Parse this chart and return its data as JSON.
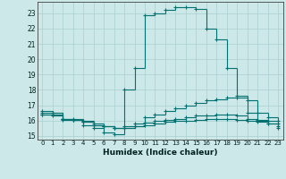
{
  "xlabel": "Humidex (Indice chaleur)",
  "bg_color": "#cce8e8",
  "grid_color": "#aacfcf",
  "line_color": "#007070",
  "xlim": [
    -0.5,
    23.5
  ],
  "ylim": [
    14.75,
    23.75
  ],
  "xticks": [
    0,
    1,
    2,
    3,
    4,
    5,
    6,
    7,
    8,
    9,
    10,
    11,
    12,
    13,
    14,
    15,
    16,
    17,
    18,
    19,
    20,
    21,
    22,
    23
  ],
  "yticks": [
    15,
    16,
    17,
    18,
    19,
    20,
    21,
    22,
    23
  ],
  "line1_x": [
    0,
    1,
    2,
    3,
    4,
    5,
    6,
    7,
    8,
    9,
    10,
    11,
    12,
    13,
    14,
    15,
    16,
    17,
    18,
    19,
    20,
    21,
    22,
    23
  ],
  "line1_y": [
    16.6,
    16.5,
    16.1,
    16.1,
    15.7,
    15.5,
    15.2,
    15.1,
    18.0,
    19.4,
    22.9,
    23.0,
    23.25,
    23.4,
    23.4,
    23.3,
    22.0,
    21.3,
    19.4,
    17.6,
    16.5,
    16.0,
    15.8,
    15.5
  ],
  "line2_x": [
    0,
    1,
    2,
    3,
    4,
    5,
    6,
    7,
    8,
    9,
    10,
    11,
    12,
    13,
    14,
    15,
    16,
    17,
    18,
    19,
    20,
    21,
    22,
    23
  ],
  "line2_y": [
    16.5,
    16.5,
    16.1,
    16.05,
    15.9,
    15.7,
    15.6,
    15.5,
    15.6,
    15.8,
    16.2,
    16.4,
    16.6,
    16.8,
    17.0,
    17.15,
    17.3,
    17.4,
    17.5,
    17.5,
    17.3,
    16.5,
    16.2,
    16.0
  ],
  "line3_x": [
    0,
    1,
    2,
    3,
    4,
    5,
    6,
    7,
    8,
    9,
    10,
    11,
    12,
    13,
    14,
    15,
    16,
    17,
    18,
    19,
    20,
    21,
    22,
    23
  ],
  "line3_y": [
    16.4,
    16.4,
    16.05,
    16.05,
    15.9,
    15.7,
    15.6,
    15.5,
    15.5,
    15.65,
    15.85,
    15.95,
    16.05,
    16.1,
    16.2,
    16.3,
    16.35,
    16.4,
    16.4,
    16.35,
    16.1,
    16.05,
    15.95,
    15.8
  ],
  "line4_x": [
    0,
    1,
    2,
    3,
    4,
    5,
    6,
    7,
    8,
    9,
    10,
    11,
    12,
    13,
    14,
    15,
    16,
    17,
    18,
    19,
    20,
    21,
    22,
    23
  ],
  "line4_y": [
    16.4,
    16.35,
    16.1,
    16.05,
    15.95,
    15.8,
    15.65,
    15.5,
    15.5,
    15.6,
    15.7,
    15.8,
    15.9,
    15.95,
    16.0,
    16.05,
    16.1,
    16.1,
    16.1,
    16.05,
    16.0,
    15.9,
    15.8,
    15.6
  ]
}
